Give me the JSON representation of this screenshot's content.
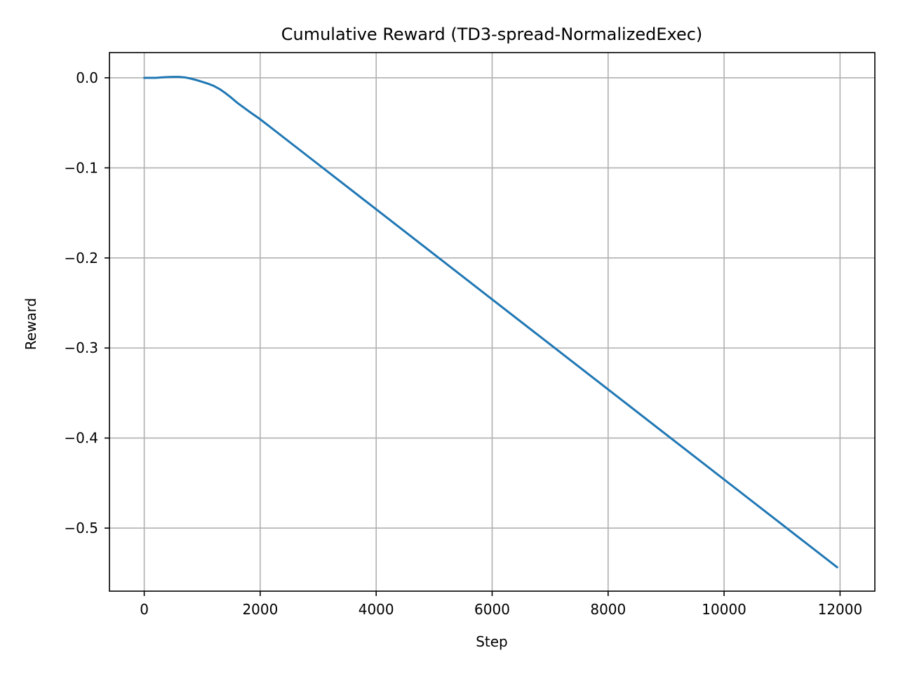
{
  "chart_data": {
    "type": "line",
    "title": "Cumulative Reward (TD3-spread-NormalizedExec)",
    "xlabel": "Step",
    "ylabel": "Reward",
    "xlim": [
      -600,
      12600
    ],
    "ylim": [
      -0.57,
      0.028
    ],
    "grid": true,
    "x_ticks": [
      0,
      2000,
      4000,
      6000,
      8000,
      10000,
      12000
    ],
    "x_tick_labels": [
      "0",
      "2000",
      "4000",
      "6000",
      "8000",
      "10000",
      "12000"
    ],
    "y_ticks": [
      0.0,
      -0.1,
      -0.2,
      -0.3,
      -0.4,
      -0.5
    ],
    "y_tick_labels": [
      "0.0",
      "−0.1",
      "−0.2",
      "−0.3",
      "−0.4",
      "−0.5"
    ],
    "series": [
      {
        "color": "#1f77b4",
        "x": [
          0,
          200,
          300,
          400,
          500,
          600,
          700,
          800,
          900,
          1000,
          1100,
          1200,
          1300,
          1400,
          1500,
          1600,
          1800,
          2000,
          3000,
          4000,
          5000,
          6000,
          7000,
          8000,
          9000,
          10000,
          11000,
          11950
        ],
        "y": [
          0.0,
          0.0,
          0.0005,
          0.0008,
          0.001,
          0.001,
          0.0005,
          -0.0008,
          -0.0025,
          -0.0045,
          -0.0065,
          -0.009,
          -0.0125,
          -0.017,
          -0.022,
          -0.0275,
          -0.037,
          -0.046,
          -0.096,
          -0.146,
          -0.196,
          -0.246,
          -0.296,
          -0.346,
          -0.396,
          -0.446,
          -0.496,
          -0.5435
        ]
      }
    ]
  }
}
